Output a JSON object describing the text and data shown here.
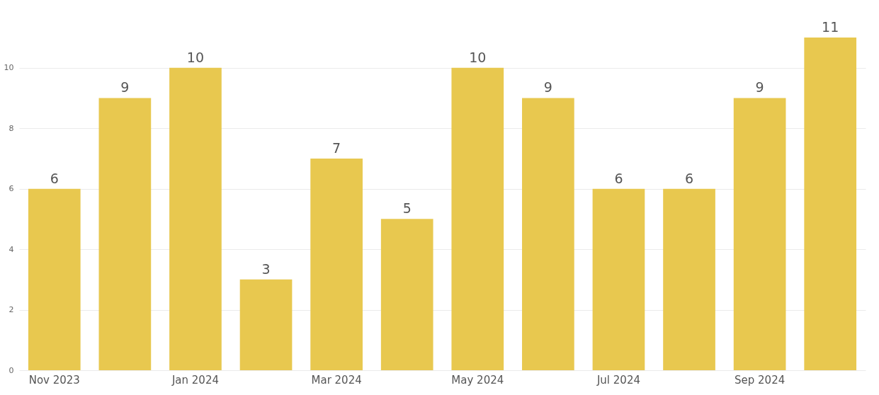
{
  "chart_data": {
    "type": "bar",
    "categories": [
      "Nov 2023",
      null,
      "Jan 2024",
      null,
      "Mar 2024",
      null,
      "May 2024",
      null,
      "Jul 2024",
      null,
      "Sep 2024",
      null
    ],
    "values": [
      6,
      9,
      10,
      3,
      7,
      5,
      10,
      9,
      6,
      6,
      9,
      11
    ],
    "color": "#e8c84f",
    "ylim": [
      0,
      11
    ],
    "yticks": [
      0,
      2,
      4,
      6,
      8,
      10
    ],
    "grid": "y",
    "data_labels": true
  }
}
